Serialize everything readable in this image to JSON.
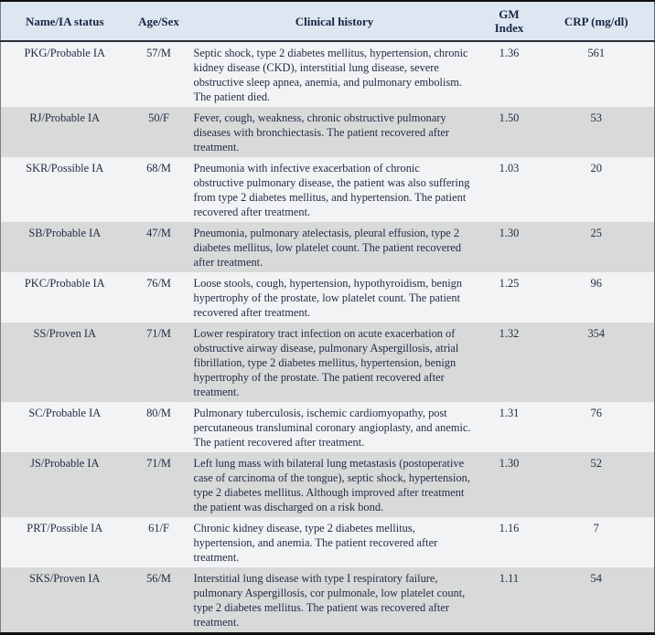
{
  "table": {
    "colors": {
      "header_bg": "#dde7f2",
      "row_light": "#f2f3f4",
      "row_gray": "#d8d9d9",
      "text": "#232c45",
      "outer_border": "#111216"
    },
    "header": {
      "name": "Name/IA status",
      "age_sex": "Age/Sex",
      "history": "Clinical history",
      "gm_index": "GM Index",
      "crp": "CRP (mg/dl)"
    },
    "rows": [
      {
        "name": "PKG/Probable IA",
        "age_sex": "57/M",
        "history": "Septic shock, type 2 diabetes mellitus, hypertension, chronic kidney disease (CKD), interstitial lung disease, severe obstructive sleep apnea, anemia, and pulmonary embolism. The patient died.",
        "gm_index": "1.36",
        "crp": "561"
      },
      {
        "name": "RJ/Probable IA",
        "age_sex": "50/F",
        "history": "Fever, cough, weakness, chronic obstructive pulmonary diseases with bronchiectasis. The patient recovered after treatment.",
        "gm_index": "1.50",
        "crp": "53"
      },
      {
        "name": "SKR/Possible IA",
        "age_sex": "68/M",
        "history": "Pneumonia with infective exacerbation of chronic obstructive pulmonary disease, the patient was also suffering from type 2 diabetes mellitus, and hypertension. The patient recovered after treatment.",
        "gm_index": "1.03",
        "crp": "20"
      },
      {
        "name": "SB/Probable IA",
        "age_sex": "47/M",
        "history": "Pneumonia, pulmonary atelectasis, pleural effusion, type 2 diabetes mellitus, low platelet count. The patient recovered after treatment.",
        "gm_index": "1.30",
        "crp": "25"
      },
      {
        "name": "PKC/Probable IA",
        "age_sex": "76/M",
        "history": "Loose stools, cough, hypertension, hypothyroidism, benign hypertrophy of the prostate, low platelet count. The patient recovered after treatment.",
        "gm_index": "1.25",
        "crp": "96"
      },
      {
        "name": "SS/Proven IA",
        "age_sex": "71/M",
        "history": "Lower respiratory tract infection on acute exacerbation of obstructive airway disease, pulmonary Aspergillosis, atrial fibrillation, type 2 diabetes mellitus, hypertension, benign hypertrophy of the prostate. The patient recovered after treatment.",
        "gm_index": "1.32",
        "crp": "354"
      },
      {
        "name": "SC/Probable IA",
        "age_sex": "80/M",
        "history": "Pulmonary tuberculosis, ischemic cardiomyopathy, post percutaneous transluminal coronary angioplasty, and anemic. The patient recovered after treatment.",
        "gm_index": "1.31",
        "crp": "76"
      },
      {
        "name": "JS/Probable IA",
        "age_sex": "71/M",
        "history": "Left lung mass with bilateral lung metastasis (postoperative case of carcinoma of the tongue), septic shock, hypertension, type 2 diabetes mellitus. Although improved after treatment the patient was discharged on a risk bond.",
        "gm_index": "1.30",
        "crp": "52"
      },
      {
        "name": "PRT/Possible IA",
        "age_sex": "61/F",
        "history": "Chronic kidney disease, type 2 diabetes mellitus, hypertension, and anemia. The patient recovered after treatment.",
        "gm_index": "1.16",
        "crp": "7"
      },
      {
        "name": "SKS/Proven IA",
        "age_sex": "56/M",
        "history": "Interstitial lung disease with type I respiratory failure, pulmonary Aspergillosis, cor pulmonale, low platelet count, type 2 diabetes mellitus. The patient was recovered after treatment.",
        "gm_index": "1.11",
        "crp": "54"
      }
    ]
  }
}
